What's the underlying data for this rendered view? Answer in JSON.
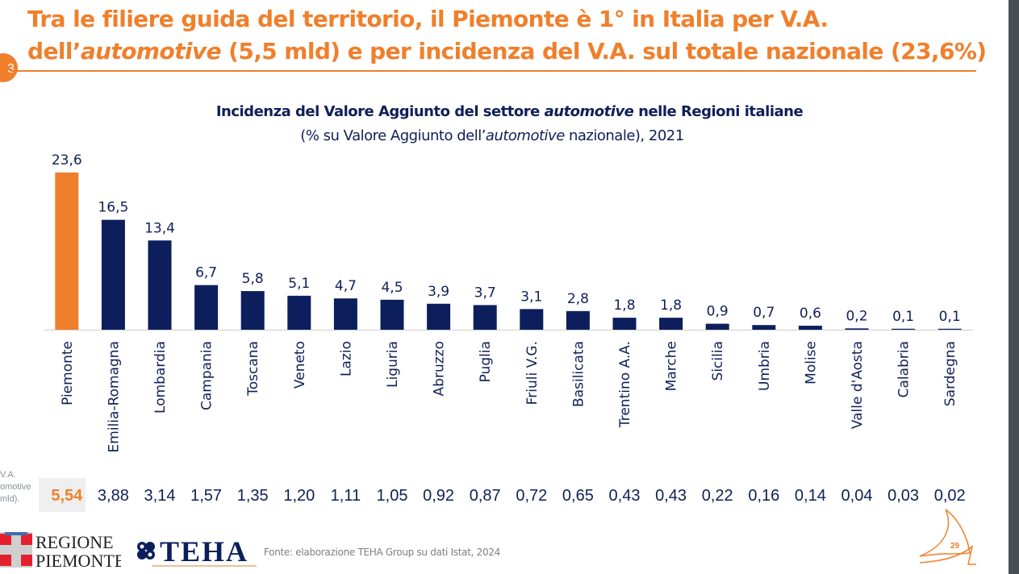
{
  "slide": {
    "title_line1": "Tra le filiere guida del territorio, il Piemonte è 1° in Italia per V.A.",
    "title_line2_pre": "dell’",
    "title_line2_italic": "automotive",
    "title_line2_post": " (5,5 mld) e per incidenza del V.A. sul totale nazionale (23,6%)",
    "section_number": "3",
    "side_label_lines": [
      "V.A.",
      "omotive",
      "mld)."
    ],
    "source": "Fonte: elaborazione TEHA Group su dati Istat, 2024",
    "page_number": "29",
    "logo_regione_line1": "REGIONE",
    "logo_regione_line2": "PIEMONTE",
    "logo_teha": "TEHA"
  },
  "colors": {
    "accent_orange": "#f07f2b",
    "navy": "#0f1f57",
    "bar_navy": "#0c1f5c",
    "gray_text": "#7f7f7f"
  },
  "chart_data": {
    "type": "bar",
    "title_pre": "Incidenza del Valore Aggiunto del settore ",
    "title_italic": "automotive",
    "title_post": " nelle Regioni italiane",
    "subtitle_pre": "(% su Valore Aggiunto dell’",
    "subtitle_italic": "automotive",
    "subtitle_post": " nazionale), 2021",
    "xlabel": "",
    "ylabel": "",
    "ylim": [
      0,
      23.6
    ],
    "grid": false,
    "legend": "none",
    "highlight_category": "Piemonte",
    "categories": [
      "Piemonte",
      "Emilia-Romagna",
      "Lombardia",
      "Campania",
      "Toscana",
      "Veneto",
      "Lazio",
      "Liguria",
      "Abruzzo",
      "Puglia",
      "Friuli V.G.",
      "Basilicata",
      "Trentino A.A.",
      "Marche",
      "Sicilia",
      "Umbria",
      "Molise",
      "Valle d'Aosta",
      "Calabria",
      "Sardegna"
    ],
    "values": [
      23.6,
      16.5,
      13.4,
      6.7,
      5.8,
      5.1,
      4.7,
      4.5,
      3.9,
      3.7,
      3.1,
      2.8,
      1.8,
      1.8,
      0.9,
      0.7,
      0.6,
      0.2,
      0.1,
      0.1
    ],
    "value_labels": [
      "23,6",
      "16,5",
      "13,4",
      "6,7",
      "5,8",
      "5,1",
      "4,7",
      "4,5",
      "3,9",
      "3,7",
      "3,1",
      "2,8",
      "1,8",
      "1,8",
      "0,9",
      "0,7",
      "0,6",
      "0,2",
      "0,1",
      "0,1"
    ],
    "secondary_row_label": "V.A. automotive (mld).",
    "secondary_values": [
      5.54,
      3.88,
      3.14,
      1.57,
      1.35,
      1.2,
      1.11,
      1.05,
      0.92,
      0.87,
      0.72,
      0.65,
      0.43,
      0.43,
      0.22,
      0.16,
      0.14,
      0.04,
      0.03,
      0.02
    ],
    "secondary_labels": [
      "5,54",
      "3,88",
      "3,14",
      "1,57",
      "1,35",
      "1,20",
      "1,11",
      "1,05",
      "0,92",
      "0,87",
      "0,72",
      "0,65",
      "0,43",
      "0,43",
      "0,22",
      "0,16",
      "0,14",
      "0,04",
      "0,03",
      "0,02"
    ]
  }
}
